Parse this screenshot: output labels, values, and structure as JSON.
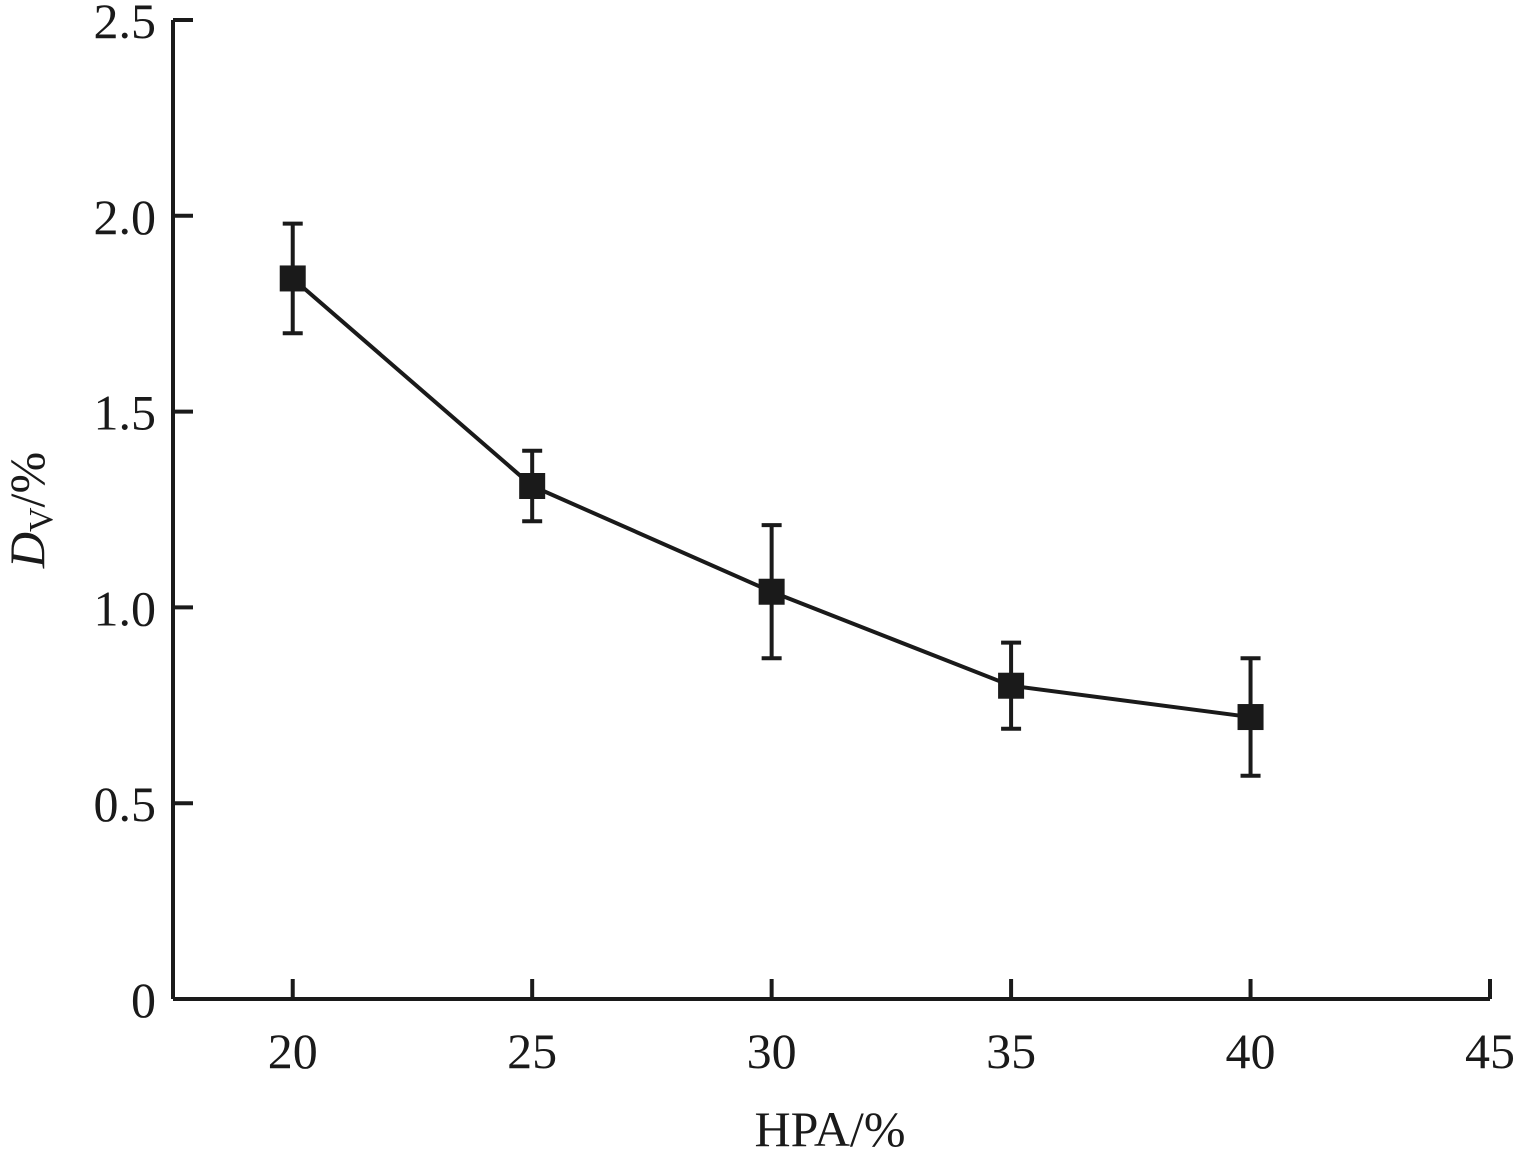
{
  "chart_data": {
    "type": "line",
    "title": "",
    "xlabel": "HPA/%",
    "ylabel": {
      "main": "D",
      "subscript": "V",
      "suffix": "/%"
    },
    "xlim": [
      17.5,
      45
    ],
    "ylim": [
      0,
      2.5
    ],
    "x_ticks": [
      20,
      25,
      30,
      35,
      40,
      45
    ],
    "x_tick_labels": [
      "20",
      "25",
      "30",
      "35",
      "40",
      "45"
    ],
    "y_ticks": [
      0,
      0.5,
      1.0,
      1.5,
      2.0,
      2.5
    ],
    "y_tick_labels": [
      "0",
      "0.5",
      "1.0",
      "1.5",
      "2.0",
      "2.5"
    ],
    "grid": false,
    "marker": "square",
    "color": "#1a1a1a",
    "series": [
      {
        "x": [
          20,
          25,
          30,
          35,
          40
        ],
        "y": [
          1.84,
          1.31,
          1.04,
          0.8,
          0.72
        ],
        "y_err_lower": [
          0.14,
          0.09,
          0.17,
          0.11,
          0.15
        ],
        "y_err_upper": [
          0.14,
          0.09,
          0.17,
          0.11,
          0.15
        ]
      }
    ]
  }
}
